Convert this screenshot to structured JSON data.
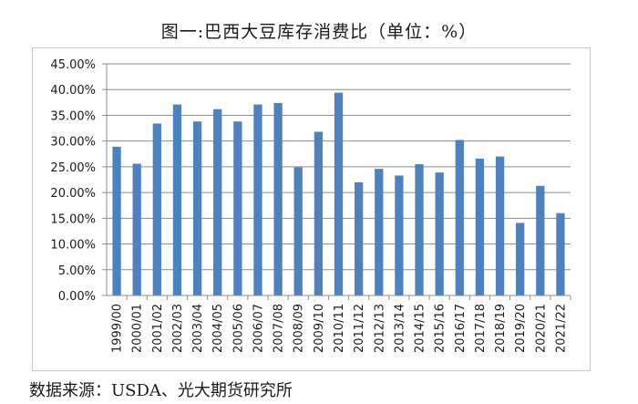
{
  "chart_data": {
    "type": "bar",
    "title": "图一:巴西大豆库存消费比（单位：%）",
    "categories": [
      "1999/00",
      "2000/01",
      "2001/02",
      "2002/03",
      "2003/04",
      "2004/05",
      "2005/06",
      "2006/07",
      "2007/08",
      "2008/09",
      "2009/10",
      "2010/11",
      "2011/12",
      "2012/13",
      "2013/14",
      "2014/15",
      "2015/16",
      "2016/17",
      "2017/18",
      "2018/19",
      "2019/20",
      "2020/21",
      "2021/22"
    ],
    "values": [
      28.9,
      25.6,
      33.4,
      37.1,
      33.8,
      36.2,
      33.8,
      37.1,
      37.4,
      24.9,
      31.8,
      39.4,
      22.0,
      24.6,
      23.3,
      25.5,
      23.9,
      30.2,
      26.6,
      27.0,
      14.1,
      21.3,
      16.0
    ],
    "y_ticks": [
      "0.00%",
      "5.00%",
      "10.00%",
      "15.00%",
      "20.00%",
      "25.00%",
      "30.00%",
      "35.00%",
      "40.00%",
      "45.00%"
    ],
    "ylim": [
      0,
      45
    ],
    "grid": true,
    "legend": "none",
    "bar_color": "#4f81bd",
    "grid_color": "#8c8c8c"
  },
  "source": "数据来源：USDA、光大期货研究所"
}
